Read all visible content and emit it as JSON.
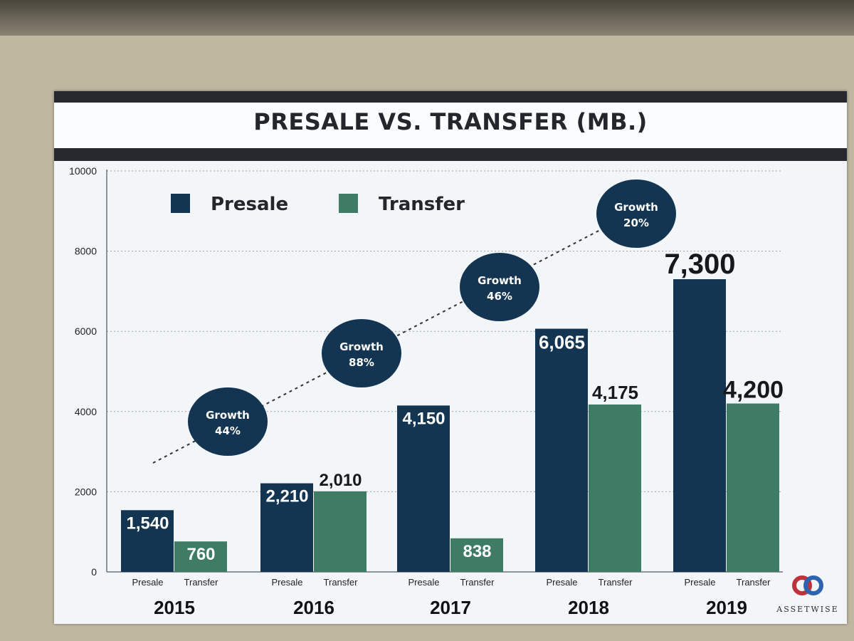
{
  "chart_data": {
    "type": "bar",
    "title": "PRESALE VS. TRANSFER (MB.)",
    "ylim": [
      0,
      10000
    ],
    "yticks": [
      0,
      2000,
      4000,
      6000,
      8000,
      10000
    ],
    "grid": true,
    "legend_position": "top-left",
    "categories": [
      "2015",
      "2016",
      "2017",
      "2018",
      "2019"
    ],
    "bar_labels": [
      "Presale",
      "Transfer"
    ],
    "series": [
      {
        "name": "Presale",
        "color": "#143552",
        "values": [
          1540,
          2210,
          4150,
          6065,
          7300
        ],
        "labels": [
          "1,540",
          "2,210",
          "4,150",
          "6,065",
          "7,300"
        ]
      },
      {
        "name": "Transfer",
        "color": "#3f7c66",
        "values": [
          760,
          2010,
          838,
          4175,
          4200
        ],
        "labels": [
          "760",
          "2,010",
          "838",
          "4,175",
          "4,200"
        ]
      }
    ],
    "annotations": [
      {
        "text": "Growth",
        "value": "44%"
      },
      {
        "text": "Growth",
        "value": "88%"
      },
      {
        "text": "Growth",
        "value": "46%"
      },
      {
        "text": "Growth",
        "value": "20%"
      }
    ]
  },
  "brand": {
    "name": "ASSETWISE",
    "logo": "interlocking-rings-logo"
  }
}
